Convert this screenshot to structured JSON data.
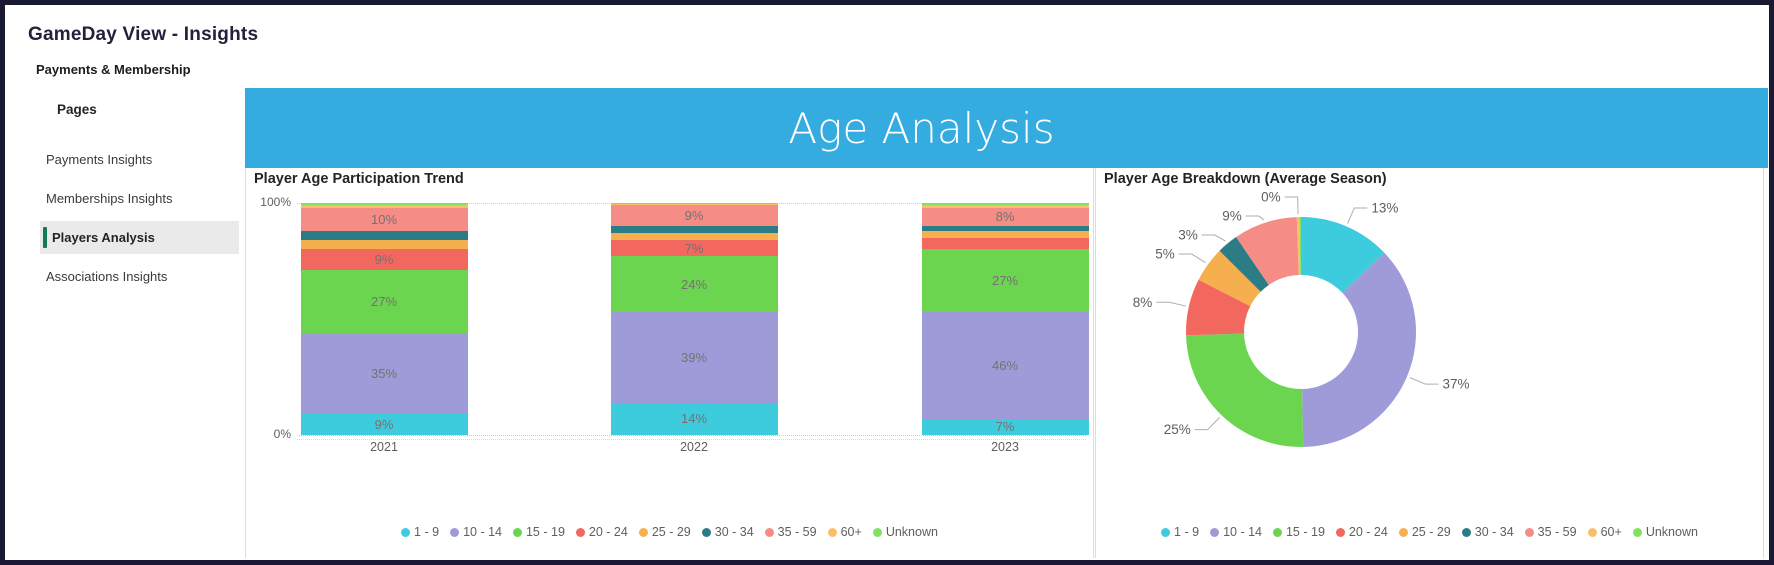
{
  "window": {
    "title": "GameDay View - Insights",
    "subtitle": "Payments & Membership"
  },
  "sidebar": {
    "heading": "Pages",
    "accent_color": "#0F7B5C",
    "selected_bg": "#EAEAEA",
    "items": [
      {
        "label": "Payments Insights",
        "selected": false
      },
      {
        "label": "Memberships Insights",
        "selected": false
      },
      {
        "label": "Players Analysis",
        "selected": true
      },
      {
        "label": "Associations Insights",
        "selected": false
      }
    ]
  },
  "banner": {
    "title": "Age Analysis",
    "color": "#35ACE0",
    "text_color": "#FFFFFF"
  },
  "chart_data": [
    {
      "type": "bar",
      "variant": "100%-stacked-column",
      "title": "Player Age Participation Trend",
      "categories": [
        "2021",
        "2022",
        "2023"
      ],
      "series": [
        {
          "name": "1 - 9",
          "color": "#3DCBDE",
          "values": [
            9,
            14,
            7
          ]
        },
        {
          "name": "10 - 14",
          "color": "#9E9BD8",
          "values": [
            35,
            39,
            46
          ]
        },
        {
          "name": "15 - 19",
          "color": "#6BD54F",
          "values": [
            27,
            24,
            27
          ]
        },
        {
          "name": "20 - 24",
          "color": "#F2685E",
          "values": [
            9,
            7,
            5
          ]
        },
        {
          "name": "25 - 29",
          "color": "#F6AF4F",
          "values": [
            4,
            3,
            3
          ]
        },
        {
          "name": "30 - 34",
          "color": "#2B7C84",
          "values": [
            4,
            3,
            2
          ]
        },
        {
          "name": "35 - 59",
          "color": "#F58C85",
          "values": [
            10,
            9,
            8
          ]
        },
        {
          "name": "60+",
          "color": "#F8BF6B",
          "values": [
            1,
            0.5,
            1
          ]
        },
        {
          "name": "Unknown",
          "color": "#80E35F",
          "values": [
            1,
            0.5,
            1
          ]
        }
      ],
      "data_labels": [
        [
          "9%",
          "35%",
          "27%",
          "9%",
          null,
          null,
          "10%",
          null,
          null
        ],
        [
          "14%",
          "39%",
          "24%",
          "7%",
          null,
          null,
          "9%",
          null,
          null
        ],
        [
          "7%",
          "46%",
          "27%",
          null,
          null,
          null,
          "8%",
          null,
          null
        ]
      ],
      "y_axis": {
        "min_label": "0%",
        "max_label": "100%"
      },
      "ylim": [
        0,
        100
      ],
      "legend_position": "bottom"
    },
    {
      "type": "pie",
      "variant": "donut",
      "title": "Player Age Breakdown (Average Season)",
      "slices": [
        {
          "name": "1 - 9",
          "color": "#3DCBDE",
          "value": 13,
          "label": "13%"
        },
        {
          "name": "10 - 14",
          "color": "#9E9BD8",
          "value": 37,
          "label": "37%"
        },
        {
          "name": "15 - 19",
          "color": "#6BD54F",
          "value": 25,
          "label": "25%"
        },
        {
          "name": "20 - 24",
          "color": "#F2685E",
          "value": 8,
          "label": "8%"
        },
        {
          "name": "25 - 29",
          "color": "#F6AF4F",
          "value": 5,
          "label": "5%"
        },
        {
          "name": "30 - 34",
          "color": "#2B7C84",
          "value": 3,
          "label": "3%"
        },
        {
          "name": "35 - 59",
          "color": "#F58C85",
          "value": 9,
          "label": "9%"
        },
        {
          "name": "60+",
          "color": "#F8BF6B",
          "value": 0.4,
          "label": "0%"
        },
        {
          "name": "Unknown",
          "color": "#80E35F",
          "value": 0.2,
          "label": null
        }
      ],
      "legend_position": "bottom"
    }
  ]
}
